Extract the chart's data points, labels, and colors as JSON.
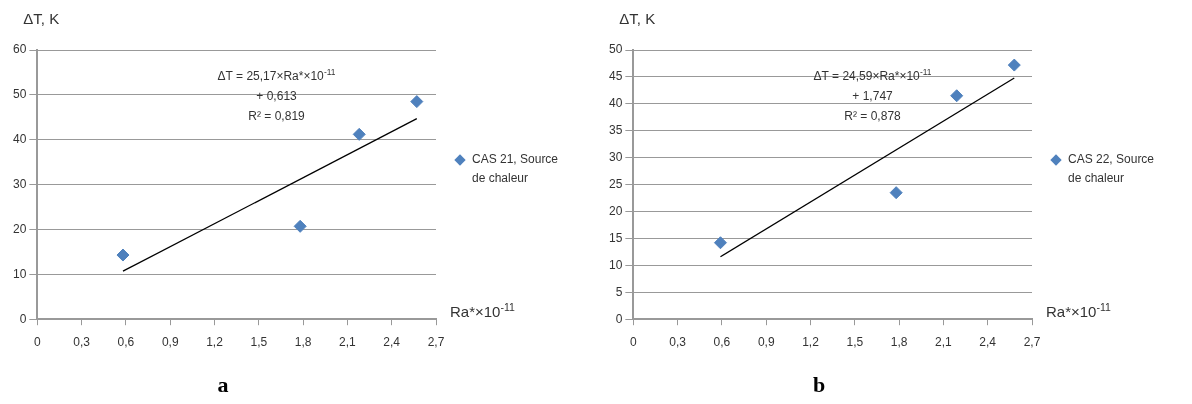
{
  "chart_data": [
    {
      "type": "scatter",
      "title": "a",
      "xlabel": "Ra*×10$^{-11}$",
      "ylabel": "ΔT, K",
      "xlim": [
        0,
        2.7
      ],
      "xticks": [
        {
          "value": 0,
          "label": "0"
        },
        {
          "value": 0.3,
          "label": "0,3"
        },
        {
          "value": 0.6,
          "label": "0,6"
        },
        {
          "value": 0.9,
          "label": "0,9"
        },
        {
          "value": 1.2,
          "label": "1,2"
        },
        {
          "value": 1.5,
          "label": "1,5"
        },
        {
          "value": 1.8,
          "label": "1,8"
        },
        {
          "value": 2.1,
          "label": "2,1"
        },
        {
          "value": 2.4,
          "label": "2,4"
        },
        {
          "value": 2.7,
          "label": "2,7"
        }
      ],
      "ylim": [
        0,
        60
      ],
      "yticks": [
        0,
        10,
        20,
        30,
        40,
        50,
        60
      ],
      "grid": "y",
      "legend": "right",
      "series": [
        {
          "name": "CAS 21, Source de chaleur",
          "marker": "diamond",
          "color": "#4f81bd",
          "x": [
            0.58,
            1.78,
            2.18,
            2.57
          ],
          "values": [
            14.3,
            20.7,
            41.2,
            48.5
          ]
        },
        {
          "type": "line",
          "marker": "none",
          "color": "#000000",
          "x": [
            0.58,
            2.57
          ],
          "values": [
            10.7,
            44.7
          ]
        }
      ],
      "annotations": [
        "ΔT = 25,17×Ra*×10$^{-11}$\n+ 0,613\nR² = 0,819"
      ]
    },
    {
      "type": "scatter",
      "title": "b",
      "xlabel": "Ra*×10$^{-11}$",
      "ylabel": "ΔT, K",
      "xlim": [
        0,
        2.7
      ],
      "xticks": [
        {
          "value": 0,
          "label": "0"
        },
        {
          "value": 0.3,
          "label": "0,3"
        },
        {
          "value": 0.6,
          "label": "0,6"
        },
        {
          "value": 0.9,
          "label": "0,9"
        },
        {
          "value": 1.2,
          "label": "1,2"
        },
        {
          "value": 1.5,
          "label": "1,5"
        },
        {
          "value": 1.8,
          "label": "1,8"
        },
        {
          "value": 2.1,
          "label": "2,1"
        },
        {
          "value": 2.4,
          "label": "2,4"
        },
        {
          "value": 2.7,
          "label": "2,7"
        }
      ],
      "ylim": [
        0,
        50
      ],
      "yticks": [
        0,
        5,
        10,
        15,
        20,
        25,
        30,
        35,
        40,
        45,
        50
      ],
      "grid": "y",
      "legend": "right",
      "series": [
        {
          "name": "CAS 22, Source de chaleur",
          "marker": "diamond",
          "color": "#4f81bd",
          "x": [
            0.59,
            1.78,
            2.19,
            2.58
          ],
          "values": [
            14.2,
            23.5,
            41.5,
            47.2
          ]
        },
        {
          "type": "line",
          "marker": "none",
          "color": "#000000",
          "x": [
            0.59,
            2.58
          ],
          "values": [
            11.6,
            44.8
          ]
        }
      ],
      "annotations": [
        "ΔT = 24,59×Ra*×10$^{-11}$\n+ 1,747\nR² = 0,878"
      ]
    }
  ]
}
